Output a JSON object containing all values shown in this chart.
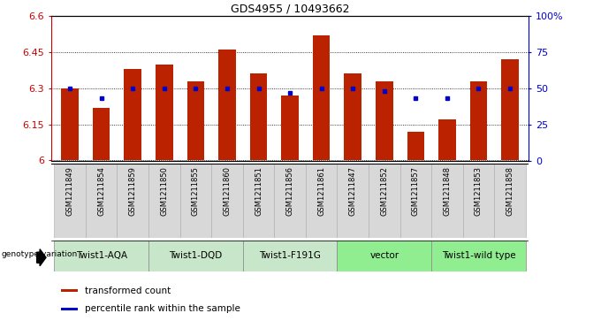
{
  "title": "GDS4955 / 10493662",
  "samples": [
    "GSM1211849",
    "GSM1211854",
    "GSM1211859",
    "GSM1211850",
    "GSM1211855",
    "GSM1211860",
    "GSM1211851",
    "GSM1211856",
    "GSM1211861",
    "GSM1211847",
    "GSM1211852",
    "GSM1211857",
    "GSM1211848",
    "GSM1211853",
    "GSM1211858"
  ],
  "bar_values": [
    6.3,
    6.22,
    6.38,
    6.4,
    6.33,
    6.46,
    6.36,
    6.27,
    6.52,
    6.36,
    6.33,
    6.12,
    6.17,
    6.33,
    6.42
  ],
  "blue_values": [
    50,
    43,
    50,
    50,
    50,
    50,
    50,
    47,
    50,
    50,
    48,
    43,
    43,
    50,
    50
  ],
  "ymin": 6.0,
  "ymax": 6.6,
  "yticks": [
    6.0,
    6.15,
    6.3,
    6.45,
    6.6
  ],
  "right_yticks": [
    0,
    25,
    50,
    75,
    100
  ],
  "groups": [
    {
      "label": "Twist1-AQA",
      "start": 0,
      "end": 3,
      "color": "#c8e6c9"
    },
    {
      "label": "Twist1-DQD",
      "start": 3,
      "end": 6,
      "color": "#c8e6c9"
    },
    {
      "label": "Twist1-F191G",
      "start": 6,
      "end": 9,
      "color": "#c8e6c9"
    },
    {
      "label": "vector",
      "start": 9,
      "end": 12,
      "color": "#90ee90"
    },
    {
      "label": "Twist1-wild type",
      "start": 12,
      "end": 15,
      "color": "#90ee90"
    }
  ],
  "bar_color": "#bb2200",
  "dot_color": "#0000cc",
  "title_fontsize": 9,
  "sample_fontsize": 6,
  "group_fontsize": 7.5,
  "legend_fontsize": 7.5,
  "axis_fontsize": 8
}
